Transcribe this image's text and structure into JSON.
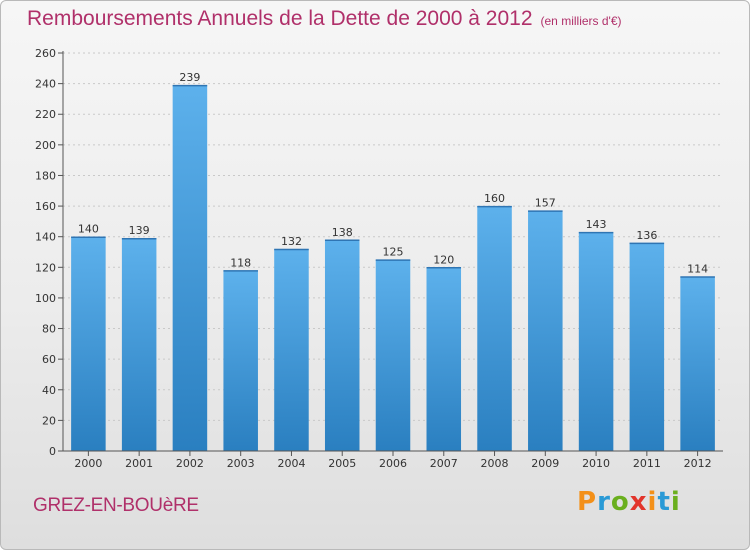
{
  "title": "Remboursements Annuels de la Dette de 2000 à 2012",
  "unit": "(en milliers d'€)",
  "commune": "GREZ-EN-BOUèRE",
  "brand": {
    "text": "Proxiti",
    "colors": [
      "#f39019",
      "#2a9ad6",
      "#6aaf1e",
      "#e2342b",
      "#f39019",
      "#2a9ad6",
      "#6aaf1e"
    ]
  },
  "chart_data": {
    "type": "bar",
    "title": "Remboursements Annuels de la Dette de 2000 à 2012",
    "xlabel": "",
    "ylabel": "",
    "categories": [
      "2000",
      "2001",
      "2002",
      "2003",
      "2004",
      "2005",
      "2006",
      "2007",
      "2008",
      "2009",
      "2010",
      "2011",
      "2012"
    ],
    "values": [
      140,
      139,
      239,
      118,
      132,
      138,
      125,
      120,
      160,
      157,
      143,
      136,
      114
    ],
    "ylim": [
      0,
      260
    ],
    "yticks": [
      0,
      20,
      40,
      60,
      80,
      100,
      120,
      140,
      160,
      180,
      200,
      220,
      240,
      260
    ],
    "grid": true,
    "bar_color_top": "#5db1ec",
    "bar_color_bottom": "#2a7fc0"
  }
}
